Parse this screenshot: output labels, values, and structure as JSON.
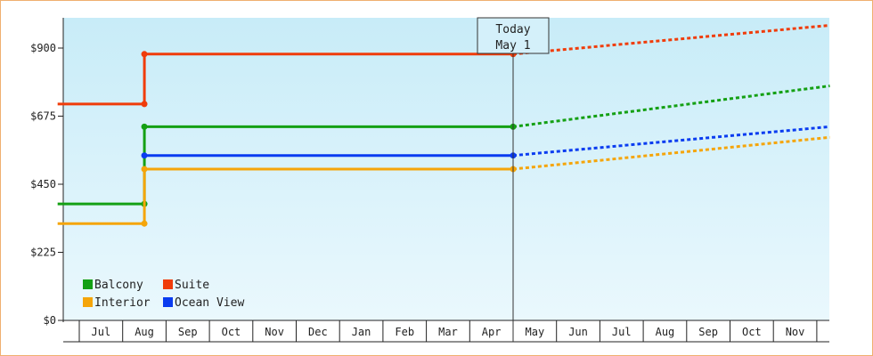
{
  "chart_data": {
    "type": "line",
    "title": "",
    "xlabel": "",
    "ylabel": "",
    "ylim": [
      0,
      1000
    ],
    "y_ticks": [
      {
        "value": 0,
        "label": "$0"
      },
      {
        "value": 225,
        "label": "$225"
      },
      {
        "value": 450,
        "label": "$450"
      },
      {
        "value": 675,
        "label": "$675"
      },
      {
        "value": 900,
        "label": "$900"
      }
    ],
    "months": [
      "Jul",
      "Aug",
      "Sep",
      "Oct",
      "Nov",
      "Dec",
      "Jan",
      "Feb",
      "Mar",
      "Apr",
      "May",
      "Jun",
      "Jul",
      "Aug",
      "Sep",
      "Oct",
      "Nov"
    ],
    "today_marker": {
      "line1": "Today",
      "line2": "May 1",
      "x": 10
    },
    "grid": false,
    "background_gradient": [
      "#c8ecf8",
      "#eaf8fd"
    ],
    "legend_position": "bottom-left",
    "series": [
      {
        "name": "Balcony",
        "color": "#14a014",
        "points": [
          [
            -0.5,
            385
          ],
          [
            1.5,
            385
          ],
          [
            1.5,
            640
          ],
          [
            10,
            640
          ]
        ],
        "forecast": [
          [
            10,
            640
          ],
          [
            17.3,
            775
          ]
        ]
      },
      {
        "name": "Suite",
        "color": "#f03c0a",
        "points": [
          [
            -0.5,
            715
          ],
          [
            1.5,
            715
          ],
          [
            1.5,
            880
          ],
          [
            10,
            880
          ]
        ],
        "forecast": [
          [
            10,
            880
          ],
          [
            17.3,
            975
          ]
        ]
      },
      {
        "name": "Interior",
        "color": "#f5a50a",
        "points": [
          [
            -0.5,
            320
          ],
          [
            1.5,
            320
          ],
          [
            1.5,
            500
          ],
          [
            10,
            500
          ]
        ],
        "forecast": [
          [
            10,
            500
          ],
          [
            17.3,
            605
          ]
        ]
      },
      {
        "name": "Ocean View",
        "color": "#0a3cf0",
        "points": [
          [
            1.5,
            545
          ],
          [
            10,
            545
          ]
        ],
        "forecast": [
          [
            10,
            545
          ],
          [
            17.3,
            640
          ]
        ]
      }
    ],
    "legend": [
      {
        "name": "Balcony",
        "color": "#14a014"
      },
      {
        "name": "Suite",
        "color": "#f03c0a"
      },
      {
        "name": "Interior",
        "color": "#f5a50a"
      },
      {
        "name": "Ocean View",
        "color": "#0a3cf0"
      }
    ]
  }
}
